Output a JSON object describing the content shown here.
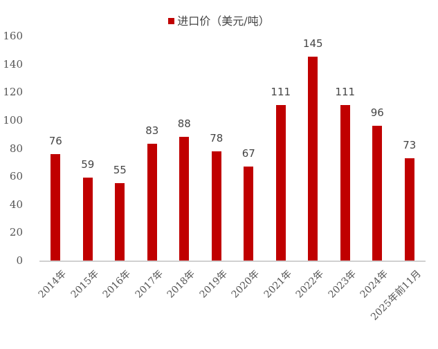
{
  "chart_data": {
    "type": "bar",
    "title": "",
    "legend": [
      {
        "name": "进口价（美元/吨）",
        "color": "#c00000"
      }
    ],
    "legend_position": "top",
    "categories": [
      "2014年",
      "2015年",
      "2016年",
      "2017年",
      "2018年",
      "2019年",
      "2020年",
      "2021年",
      "2022年",
      "2023年",
      "2024年",
      "2025年前11月"
    ],
    "series": [
      {
        "name": "进口价（美元/吨）",
        "values": [
          76,
          59,
          55,
          83,
          88,
          78,
          67,
          111,
          145,
          111,
          96,
          73
        ],
        "color": "#c00000"
      }
    ],
    "data_labels": [
      "76",
      "59",
      "55",
      "83",
      "88",
      "78",
      "67",
      "111",
      "145",
      "111",
      "96",
      "73"
    ],
    "xlabel": "",
    "ylabel": "",
    "ylim": [
      0,
      160
    ],
    "yticks": [
      "0",
      "20",
      "40",
      "60",
      "80",
      "100",
      "120",
      "140",
      "160"
    ],
    "grid": false
  },
  "legend": {
    "label": "进口价（美元/吨）"
  }
}
